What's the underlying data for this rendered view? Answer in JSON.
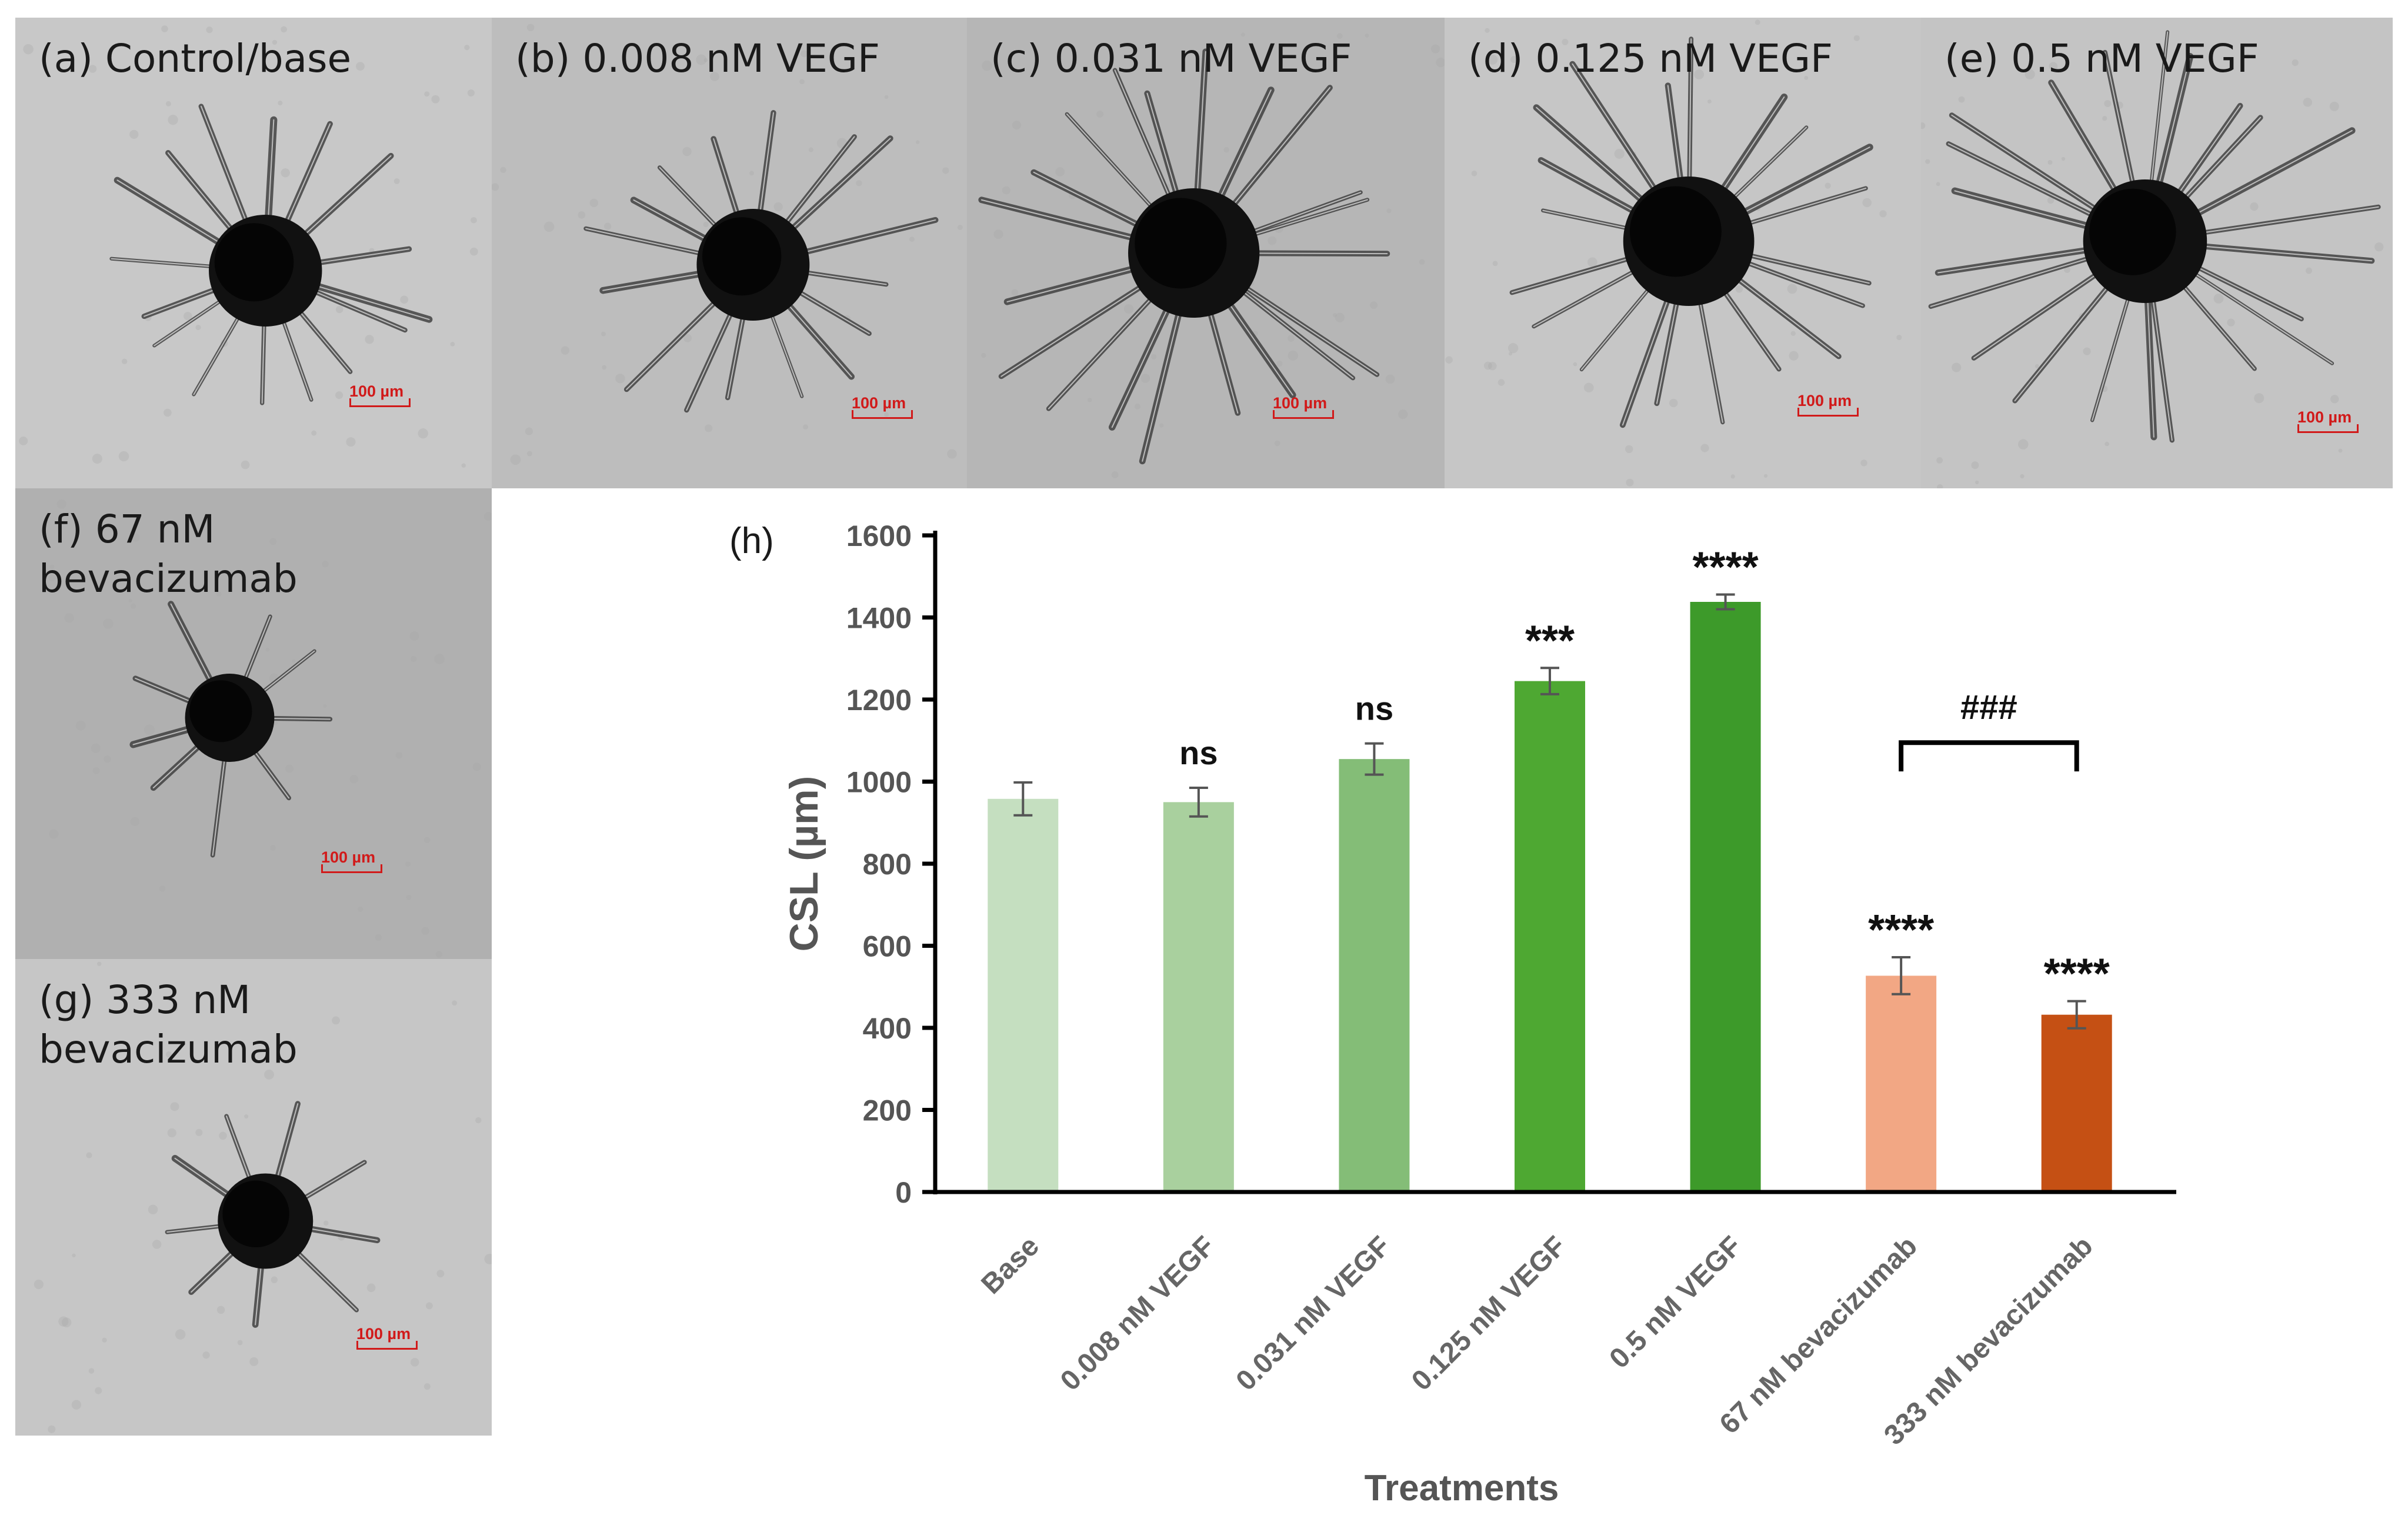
{
  "panels": [
    {
      "id": "a",
      "label": "(a) Control/base",
      "scale": "100 µm"
    },
    {
      "id": "b",
      "label": "(b) 0.008 nM VEGF",
      "scale": "100 µm"
    },
    {
      "id": "c",
      "label": "(c) 0.031 nM VEGF",
      "scale": "100 µm"
    },
    {
      "id": "d",
      "label": "(d) 0.125 nM VEGF",
      "scale": "100 µm"
    },
    {
      "id": "e",
      "label": "(e) 0.5 nM VEGF",
      "scale": "100 µm"
    },
    {
      "id": "f",
      "label_line1": "(f) 67 nM",
      "label_line2": "bevacizumab",
      "scale": "100 µm"
    },
    {
      "id": "g",
      "label_line1": "(g) 333 nM",
      "label_line2": "bevacizumab",
      "scale": "100 µm"
    }
  ],
  "chart_data": {
    "type": "bar",
    "panel_label": "(h)",
    "categories": [
      "Base",
      "0.008 nM VEGF",
      "0.031 nM VEGF",
      "0.125 nM VEGF",
      "0.5 nM VEGF",
      "67 nM bevacizumab",
      "333 nM bevacizumab"
    ],
    "values": [
      958,
      950,
      1055,
      1245,
      1438,
      527,
      432
    ],
    "errors": [
      40,
      35,
      38,
      32,
      18,
      45,
      33
    ],
    "significance": [
      "",
      "ns",
      "ns",
      "***",
      "****",
      "****",
      "****"
    ],
    "bar_colors": [
      "#c5dfc0",
      "#a9d09e",
      "#84bd77",
      "#4ea832",
      "#3d9a2a",
      "#f2a784",
      "#c55014"
    ],
    "comparison": {
      "from": 5,
      "to": 6,
      "label": "###"
    },
    "ylabel": "CSL (µm)",
    "xlabel": "Treatments",
    "ylim": [
      0,
      1600
    ],
    "yticks": [
      0,
      200,
      400,
      600,
      800,
      1000,
      1200,
      1400,
      1600
    ]
  }
}
